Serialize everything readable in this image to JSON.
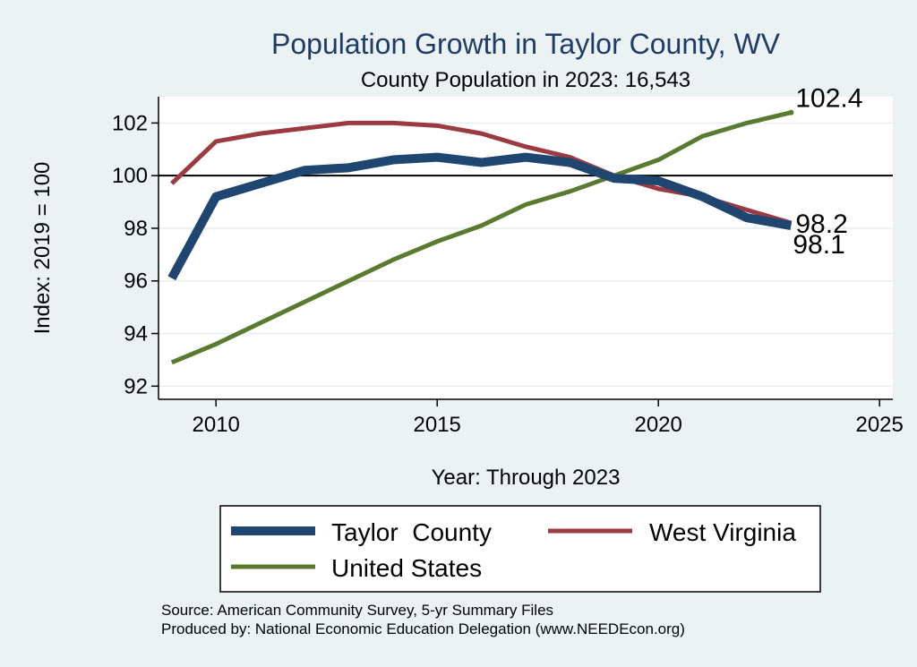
{
  "chart_data": {
    "type": "line",
    "title": "Population Growth in Taylor County, WV",
    "subtitle": "County Population in 2023: 16,543",
    "xlabel": "Year: Through 2023",
    "ylabel": "Index: 2019 = 100",
    "xlim": [
      2008.7,
      2025.3
    ],
    "ylim": [
      91.5,
      103
    ],
    "xticks": [
      2010,
      2015,
      2020,
      2025
    ],
    "yticks": [
      92,
      94,
      96,
      98,
      100,
      102
    ],
    "reference_line": 100,
    "x": [
      2009,
      2010,
      2011,
      2012,
      2013,
      2014,
      2015,
      2016,
      2017,
      2018,
      2019,
      2020,
      2021,
      2022,
      2023
    ],
    "series": [
      {
        "name": "Taylor  County",
        "color": "#1e4670",
        "values": [
          96.1,
          99.2,
          99.7,
          100.2,
          100.3,
          100.6,
          100.7,
          100.5,
          100.7,
          100.5,
          99.9,
          99.8,
          99.2,
          98.4,
          98.1
        ],
        "end_label": "98.1"
      },
      {
        "name": "West Virginia",
        "color": "#9b3a41",
        "values": [
          99.7,
          101.3,
          101.6,
          101.8,
          102.0,
          102.0,
          101.9,
          101.6,
          101.1,
          100.7,
          100.0,
          99.5,
          99.2,
          98.7,
          98.2
        ],
        "end_label": "98.2"
      },
      {
        "name": "United States",
        "color": "#5a7a2f",
        "values": [
          92.9,
          93.6,
          94.4,
          95.2,
          96.0,
          96.8,
          97.5,
          98.1,
          98.9,
          99.4,
          100.0,
          100.6,
          101.5,
          102.0,
          102.4
        ],
        "end_label": "102.4"
      }
    ],
    "legend": [
      "Taylor  County",
      "West Virginia",
      "United States"
    ],
    "notes": [
      "Source: American Community Survey, 5-yr Summary Files",
      "Produced by: National Economic Education Delegation (www.NEEDEcon.org)"
    ]
  }
}
